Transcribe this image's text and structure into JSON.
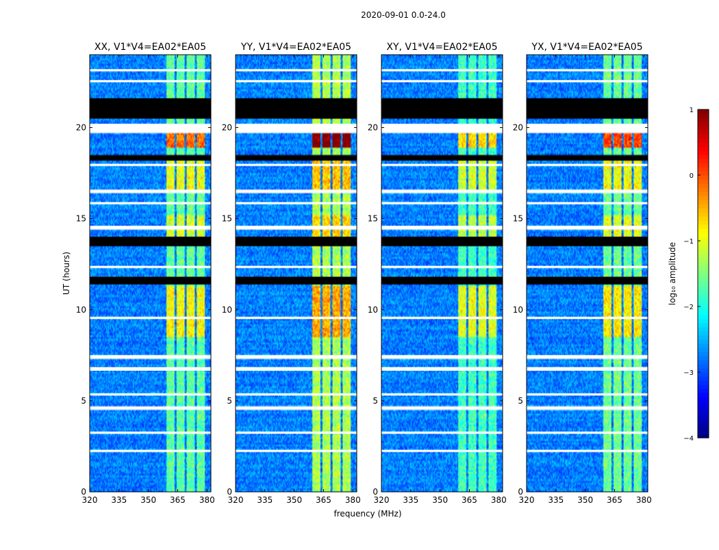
{
  "chart_data": {
    "type": "heatmap",
    "title": "2020-09-01 0.0-24.0",
    "xlabel": "frequency (MHz)",
    "ylabel": "UT (hours)",
    "xlim": [
      320,
      382
    ],
    "ylim": [
      0,
      24
    ],
    "x_ticks": [
      320,
      335,
      350,
      365,
      380
    ],
    "x_tick_labels": [
      "320",
      "335",
      "350",
      "365",
      "380"
    ],
    "y_ticks": [
      0,
      5,
      10,
      15,
      20
    ],
    "y_tick_labels": [
      "0",
      "5",
      "10",
      "15",
      "20"
    ],
    "panels": [
      {
        "title": "XX, V1*V4=EA02*EA05",
        "show_ylabel": true,
        "show_xlabel": false,
        "band_boost": 0.0
      },
      {
        "title": "YY, V1*V4=EA02*EA05",
        "show_ylabel": false,
        "show_xlabel": true,
        "band_boost": 0.25
      },
      {
        "title": "XY, V1*V4=EA02*EA05",
        "show_ylabel": false,
        "show_xlabel": false,
        "band_boost": -0.1
      },
      {
        "title": "YX, V1*V4=EA02*EA05",
        "show_ylabel": false,
        "show_xlabel": false,
        "band_boost": 0.05
      }
    ],
    "rfi_bands_mhz": [
      [
        359.5,
        363.5
      ],
      [
        364.5,
        368.5
      ],
      [
        369.5,
        373.5
      ],
      [
        375.0,
        379.0
      ]
    ],
    "flagged_hours_black": [
      [
        20.5,
        21.6
      ],
      [
        18.2,
        18.45
      ],
      [
        13.5,
        14.0
      ],
      [
        11.4,
        11.8
      ]
    ],
    "flagged_hours_white": [
      [
        19.75,
        19.95
      ],
      [
        20.05,
        20.2
      ],
      [
        14.45,
        14.6
      ],
      [
        7.35,
        7.5
      ],
      [
        6.65,
        6.85
      ],
      [
        12.3,
        12.4
      ],
      [
        4.55,
        4.65
      ],
      [
        3.2,
        3.3
      ],
      [
        22.5,
        22.6
      ],
      [
        23.1,
        23.2
      ],
      [
        2.2,
        2.3
      ],
      [
        5.3,
        5.4
      ],
      [
        9.5,
        9.6
      ],
      [
        16.45,
        16.55
      ],
      [
        17.9,
        18.0
      ],
      [
        15.8,
        15.9
      ]
    ],
    "colorbar": {
      "label": "log₁₀ amplitude",
      "ticks": [
        1,
        0,
        -1,
        -2,
        -3,
        -4
      ],
      "tick_labels": [
        "1",
        "0",
        "−1",
        "−2",
        "−3",
        "−4"
      ],
      "range": [
        -4,
        1
      ],
      "colormap": "jet"
    }
  }
}
